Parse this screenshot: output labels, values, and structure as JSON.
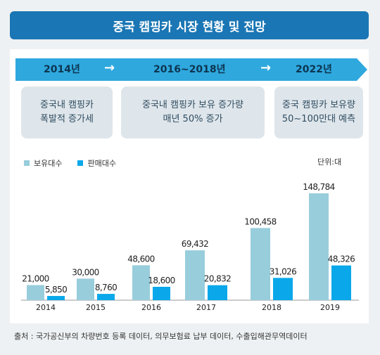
{
  "title": "중국 캠핑카 시장 현황 및 전망",
  "timeline": {
    "labels": [
      "2014년",
      "2016~2018년",
      "2022년"
    ],
    "arrow_glyph": "→"
  },
  "info_boxes": [
    "중국내 캠핑카\n폭발적 증가세",
    "중국내 캠핑카 보유 증가량\n매년 50% 증가",
    "중국 캠핑카 보유량\n50~100만대 예측"
  ],
  "unit": "단위:대",
  "colors": {
    "owned": "#98cddc",
    "sold": "#0aa8ea",
    "title_bar": "#1a76b4",
    "timeline": "#2fa8de"
  },
  "chart_data": {
    "type": "bar",
    "categories": [
      "2014",
      "2015",
      "2016",
      "2017",
      "2018",
      "2019"
    ],
    "series": [
      {
        "name": "보유대수",
        "values": [
          21000,
          30000,
          48600,
          69432,
          100458,
          148784
        ],
        "labels": [
          "21,000",
          "30,000",
          "48,600",
          "69,432",
          "100,458",
          "148,784"
        ]
      },
      {
        "name": "판매대수",
        "values": [
          5850,
          8760,
          18600,
          20832,
          31026,
          48326
        ],
        "labels": [
          "5,850",
          "8,760",
          "18,600",
          "20,832",
          "31,026",
          "48,326"
        ]
      }
    ],
    "legend_position": "top-left",
    "grid": false
  },
  "source": "출처 : 국가공신부의 차량번호 등록 데이터, 의무보험료 납부 데이터, 수출입해관무역데이터"
}
